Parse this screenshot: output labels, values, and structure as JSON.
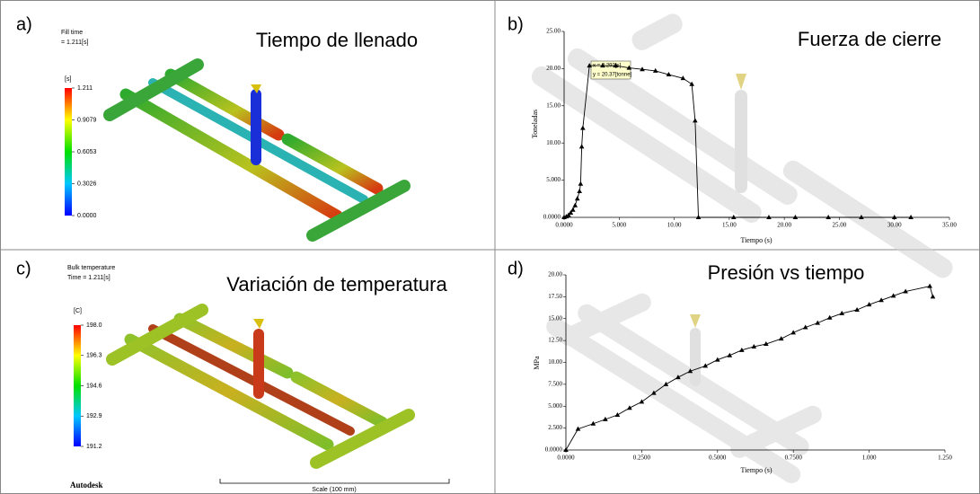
{
  "panels": [
    {
      "label": "a)",
      "title": "Tiempo de llenado",
      "result": "Fill time",
      "time": "= 1.211[s]",
      "unit": "[s]",
      "colormap": [
        "#0000ff",
        "#00c8ff",
        "#00e000",
        "#ffff00",
        "#ff0000"
      ],
      "colorbar": {
        "lim": [
          0,
          1.211
        ],
        "ticks": [
          1.211,
          0.9079,
          0.6053,
          0.3026,
          {
            "value": 0,
            "label": "0.0000"
          }
        ]
      }
    },
    {
      "label": "c)",
      "title": "Variación de temperatura",
      "result": "Bulk temperature",
      "time": "Time = 1.211[s]",
      "unit": "[C]",
      "colormap": [
        "#0000ff",
        "#00c8ff",
        "#00e000",
        "#ffff00",
        "#ff0000"
      ],
      "colorbar": {
        "lim": [
          191.2,
          198
        ],
        "ticks": [
          {
            "value": 198,
            "label": "198.0"
          },
          196.3,
          194.6,
          192.9,
          191.2
        ]
      },
      "logo": "Autodesk",
      "scale_bar": "Scale (100 mm)"
    }
  ],
  "chart_data": [
    {
      "type": "line",
      "label": "b)",
      "title": "Fuerza de cierre",
      "x_label": "Tiempo (s)",
      "y_label": "Toneladas",
      "color": "#000000",
      "x": [
        0,
        0.2,
        0.4,
        0.6,
        0.8,
        1.0,
        1.2,
        1.4,
        1.5,
        1.6,
        1.7,
        2.3,
        3.5,
        4.7,
        5.9,
        7.1,
        8.3,
        9.5,
        10.8,
        11.6,
        11.9,
        12.2,
        15.4,
        18.6,
        21,
        24,
        27,
        30,
        31.5
      ],
      "values": [
        0,
        0.1,
        0.3,
        0.6,
        1.0,
        1.6,
        2.5,
        3.5,
        4.5,
        9.5,
        12,
        20.4,
        20.4,
        20.4,
        20.1,
        19.9,
        19.7,
        19.2,
        18.7,
        17.9,
        13,
        0,
        0,
        0,
        0,
        0,
        0,
        0,
        0
      ],
      "xlim": [
        0,
        35
      ],
      "ylim": [
        0,
        25
      ],
      "xticks": [
        {
          "value": 0,
          "label": "0.0000"
        },
        {
          "value": 5,
          "label": "5.000"
        },
        {
          "value": 10,
          "label": "10.00"
        },
        {
          "value": 15,
          "label": "15.00"
        },
        {
          "value": 20,
          "label": "20.00"
        },
        {
          "value": 25,
          "label": "25.00"
        },
        {
          "value": 30,
          "label": "30.00"
        },
        {
          "value": 35,
          "label": "35.00"
        }
      ],
      "yticks": [
        {
          "value": 0,
          "label": "0.0000"
        },
        {
          "value": 5,
          "label": "5.000"
        },
        {
          "value": 10,
          "label": "10.00"
        },
        {
          "value": 15,
          "label": "15.00"
        },
        {
          "value": 20,
          "label": "20.00"
        },
        {
          "value": 25,
          "label": "25.00"
        }
      ],
      "annotations": [
        "x = 2.292[s]",
        "y = 20.37[tonne]"
      ]
    },
    {
      "type": "line",
      "label": "d)",
      "title": "Presión vs tiempo",
      "x_label": "Tiempo (s)",
      "y_label": "MPa",
      "color": "#000000",
      "x": [
        0,
        0.04,
        0.09,
        0.13,
        0.17,
        0.21,
        0.25,
        0.29,
        0.33,
        0.37,
        0.41,
        0.46,
        0.5,
        0.54,
        0.58,
        0.62,
        0.66,
        0.71,
        0.75,
        0.79,
        0.83,
        0.87,
        0.91,
        0.96,
        1.0,
        1.04,
        1.08,
        1.12,
        1.2,
        1.21
      ],
      "values": [
        0,
        2.4,
        3.0,
        3.5,
        4.0,
        4.8,
        5.5,
        6.5,
        7.5,
        8.3,
        9.0,
        9.6,
        10.3,
        10.8,
        11.4,
        11.8,
        12.1,
        12.7,
        13.4,
        14.0,
        14.5,
        15.1,
        15.6,
        16.0,
        16.6,
        17.1,
        17.6,
        18.1,
        18.7,
        17.5
      ],
      "xlim": [
        0,
        1.25
      ],
      "ylim": [
        0,
        20
      ],
      "xticks": [
        {
          "value": 0,
          "label": "0.0000"
        },
        {
          "value": 0.25,
          "label": "0.2500"
        },
        {
          "value": 0.5,
          "label": "0.5000"
        },
        {
          "value": 0.75,
          "label": "0.7500"
        },
        {
          "value": 1,
          "label": "1.000"
        },
        {
          "value": 1.25,
          "label": "1.250"
        }
      ],
      "yticks": [
        {
          "value": 0,
          "label": "0.0000"
        },
        {
          "value": 2.5,
          "label": "2.500"
        },
        {
          "value": 5,
          "label": "5.000"
        },
        {
          "value": 7.5,
          "label": "7.500"
        },
        {
          "value": 10,
          "label": "10.00"
        },
        {
          "value": 12.5,
          "label": "12.50"
        },
        {
          "value": 15,
          "label": "15.00"
        },
        {
          "value": 17.5,
          "label": "17.50"
        },
        {
          "value": 20,
          "label": "20.00"
        }
      ]
    }
  ]
}
